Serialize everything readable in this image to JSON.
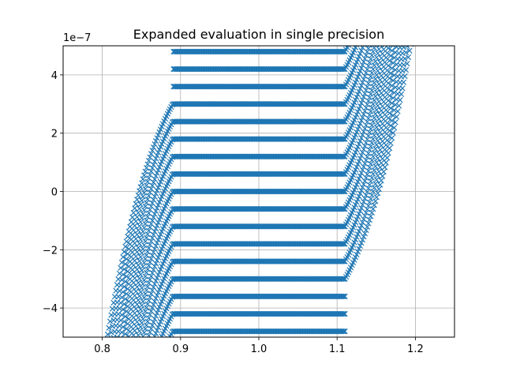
{
  "chart_data": {
    "type": "scatter",
    "title": "Expanded evaluation in single precision",
    "xlabel": "",
    "ylabel": "",
    "xlim": [
      0.75,
      1.25
    ],
    "ylim": [
      -5e-07,
      5e-07
    ],
    "x_ticks": [
      0.8,
      0.9,
      1.0,
      1.1,
      1.2
    ],
    "x_tick_labels": [
      "0.8",
      "0.9",
      "1.0",
      "1.1",
      "1.2"
    ],
    "y_ticks": [
      -4e-07,
      -2e-07,
      0,
      2e-07,
      4e-07
    ],
    "y_tick_labels": [
      "−4",
      "−2",
      "0",
      "2",
      "4"
    ],
    "y_offset_label": "1e−7",
    "grid": true,
    "marker": "x",
    "color": "#1f77b4",
    "series": [
      {
        "values_description_note_excluded": null,
        "levels": [
          -4.8e-07,
          -4.2e-07,
          -3.6e-07,
          -3e-07,
          -2.4e-07,
          -1.8e-07,
          -1.2e-07,
          -6e-08,
          0,
          6e-08,
          1.2e-07,
          1.8e-07,
          2.4e-07,
          3e-07,
          3.6e-07,
          4.2e-07,
          4.8e-07
        ],
        "x_range": [
          0.78,
          1.22
        ],
        "cubic_center": 1.0
      }
    ]
  }
}
